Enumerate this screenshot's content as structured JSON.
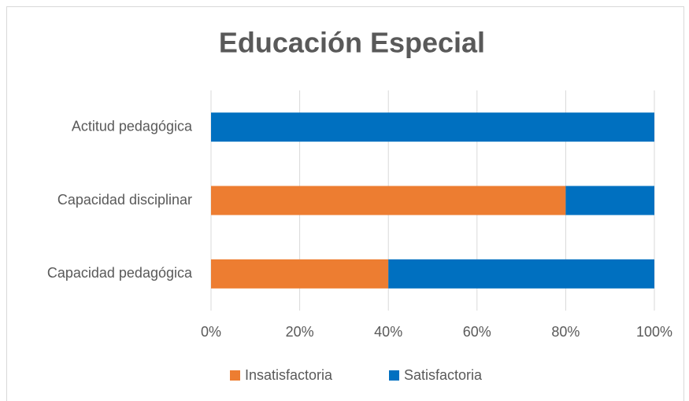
{
  "chart_data": {
    "type": "stacked_bar_horizontal",
    "title": "Educación Especial",
    "categories": [
      "Actitud pedagógica",
      "Capacidad disciplinar",
      "Capacidad pedagógica"
    ],
    "series": [
      {
        "name": "Insatisfactoria",
        "color": "#ed7d31",
        "values": [
          0,
          80,
          40
        ]
      },
      {
        "name": "Satisfactoria",
        "color": "#0070c0",
        "values": [
          100,
          20,
          60
        ]
      }
    ],
    "xlim": [
      0,
      100
    ],
    "xticks": [
      {
        "value": 0,
        "label": "0%"
      },
      {
        "value": 20,
        "label": "20%"
      },
      {
        "value": 40,
        "label": "40%"
      },
      {
        "value": 60,
        "label": "60%"
      },
      {
        "value": 80,
        "label": "80%"
      },
      {
        "value": 100,
        "label": "100%"
      }
    ],
    "grid": true,
    "legend": "bottom"
  }
}
